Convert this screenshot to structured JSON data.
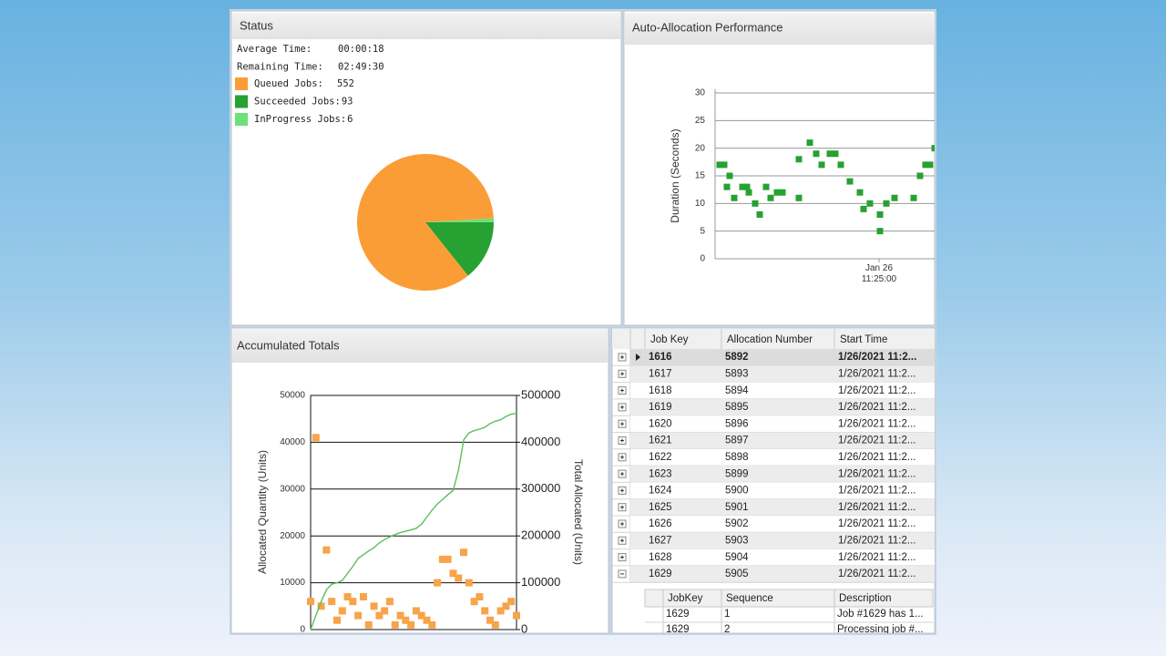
{
  "status": {
    "fields": [
      {
        "label": "Average Time:",
        "value": "00:00:18"
      },
      {
        "label": "Remaining Time:",
        "value": "02:49:30"
      }
    ]
  },
  "chart_data": [
    {
      "type": "pie",
      "title": "Status",
      "categories": [
        "Queued Jobs:",
        "Succeeded Jobs:",
        "InProgress Jobs:"
      ],
      "values": [
        552,
        93,
        6
      ],
      "colors": [
        "#fb9d36",
        "#26a132",
        "#6ee07a"
      ]
    },
    {
      "type": "scatter",
      "title": "Auto-Allocation Performance",
      "y_label": "Duration (Seconds)",
      "x": [
        40575,
        40590,
        40599,
        40608,
        40623,
        40650,
        40665,
        40671,
        40692,
        40707,
        40728,
        40743,
        40764,
        40782,
        40836,
        40836,
        40872,
        40893,
        40911,
        40938,
        40956,
        40974,
        41004,
        41037,
        41049,
        41070,
        41103,
        41103,
        41124,
        41151,
        41214,
        41235,
        41253,
        41268,
        41283
      ],
      "values": [
        17,
        17,
        13,
        15,
        11,
        13,
        13,
        12,
        10,
        8,
        13,
        11,
        12,
        12,
        18,
        11,
        21,
        19,
        17,
        19,
        19,
        17,
        14,
        12,
        9,
        10,
        8,
        5,
        10,
        11,
        11,
        15,
        17,
        17,
        20
      ],
      "color": "#26a132",
      "xlim": [
        40560,
        41283
      ],
      "xticks": [
        {
          "value": 41100,
          "label": "Jan 26\n11:25:00"
        }
      ],
      "ylim": [
        0,
        30
      ],
      "yticks": [
        0,
        5,
        10,
        15,
        20,
        25,
        30
      ],
      "grid": true
    },
    {
      "type": "combo",
      "title": "Accumulated Totals",
      "y_label": "Allocated Quantity (Units)",
      "y2_label": "Total Allocated (Units)",
      "categories": [
        null,
        null,
        null,
        null,
        null,
        null,
        null,
        null,
        null,
        null,
        null,
        null,
        null,
        null,
        null,
        null,
        null,
        null,
        null,
        null,
        null,
        null,
        null,
        null,
        null,
        null,
        null,
        null,
        null,
        null,
        null,
        null,
        null,
        null,
        null,
        null,
        null,
        null,
        null,
        null
      ],
      "series": [
        {
          "type": "scatter",
          "color": "#f7a44a",
          "values": [
            6000,
            41000,
            5000,
            17000,
            6000,
            2000,
            4000,
            7000,
            6000,
            3000,
            7000,
            1000,
            5000,
            3000,
            4000,
            6000,
            1000,
            3000,
            2000,
            1000,
            4000,
            3000,
            2000,
            1000,
            10000,
            15000,
            15000,
            12000,
            11000,
            16500,
            10000,
            6000,
            7000,
            4000,
            2000,
            1000,
            4000,
            5000,
            6000,
            3000
          ]
        },
        {
          "type": "line",
          "color": "#5cbf5c",
          "axis": "y2",
          "values": [
            0,
            30000,
            60000,
            85000,
            97000,
            100000,
            105000,
            120000,
            135000,
            152000,
            160000,
            168000,
            175000,
            185000,
            192000,
            198000,
            203000,
            207000,
            210000,
            213000,
            216000,
            225000,
            240000,
            255000,
            268000,
            278000,
            288000,
            297000,
            340000,
            405000,
            420000,
            425000,
            428000,
            432000,
            440000,
            445000,
            448000,
            455000,
            460000,
            462000
          ]
        }
      ],
      "ylim": [
        0,
        50000
      ],
      "yticks": [
        0,
        10000,
        20000,
        30000,
        40000,
        50000
      ],
      "y2lim": [
        0,
        500000
      ],
      "y2ticks": [
        0,
        100000,
        200000,
        300000,
        400000,
        500000
      ],
      "grid": true
    }
  ],
  "grid": {
    "columns": [
      "Job Key",
      "Allocation Number",
      "Start Time"
    ],
    "rows": [
      [
        1616,
        5892,
        "1/26/2021 11:2..."
      ],
      [
        1617,
        5893,
        "1/26/2021 11:2..."
      ],
      [
        1618,
        5894,
        "1/26/2021 11:2..."
      ],
      [
        1619,
        5895,
        "1/26/2021 11:2..."
      ],
      [
        1620,
        5896,
        "1/26/2021 11:2..."
      ],
      [
        1621,
        5897,
        "1/26/2021 11:2..."
      ],
      [
        1622,
        5898,
        "1/26/2021 11:2..."
      ],
      [
        1623,
        5899,
        "1/26/2021 11:2..."
      ],
      [
        1624,
        5900,
        "1/26/2021 11:2..."
      ],
      [
        1625,
        5901,
        "1/26/2021 11:2..."
      ],
      [
        1626,
        5902,
        "1/26/2021 11:2..."
      ],
      [
        1627,
        5903,
        "1/26/2021 11:2..."
      ],
      [
        1628,
        5904,
        "1/26/2021 11:2..."
      ],
      [
        1629,
        5905,
        "1/26/2021 11:2..."
      ]
    ],
    "detail": {
      "columns": [
        "JobKey",
        "Sequence",
        "Description"
      ],
      "rows": [
        [
          1629,
          1,
          "Job #1629 has 1..."
        ],
        [
          1629,
          2,
          "Processing job #..."
        ]
      ]
    }
  }
}
